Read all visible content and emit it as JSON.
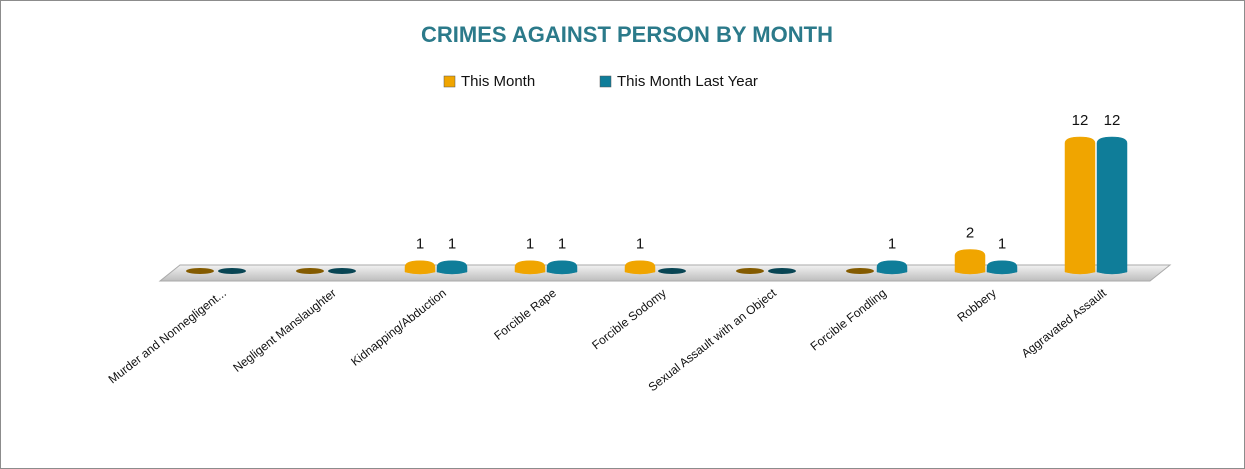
{
  "chart_data": {
    "type": "bar3d",
    "title": "CRIMES AGAINST PERSON BY MONTH",
    "categories": [
      "Murder and Nonnegligent...",
      "Negligent Manslaughter",
      "Kidnapping/Abduction",
      "Forcible Rape",
      "Forcible Sodomy",
      "Sexual Assault with an Object",
      "Forcible Fondling",
      "Robbery",
      "Aggravated Assault"
    ],
    "series": [
      {
        "name": "This Month",
        "color": "#f0a500",
        "values": [
          0,
          0,
          1,
          1,
          1,
          0,
          0,
          2,
          12
        ]
      },
      {
        "name": "This Month Last Year",
        "color": "#0f7d99",
        "values": [
          0,
          0,
          1,
          1,
          0,
          0,
          1,
          1,
          12
        ]
      }
    ],
    "legend": "top"
  }
}
